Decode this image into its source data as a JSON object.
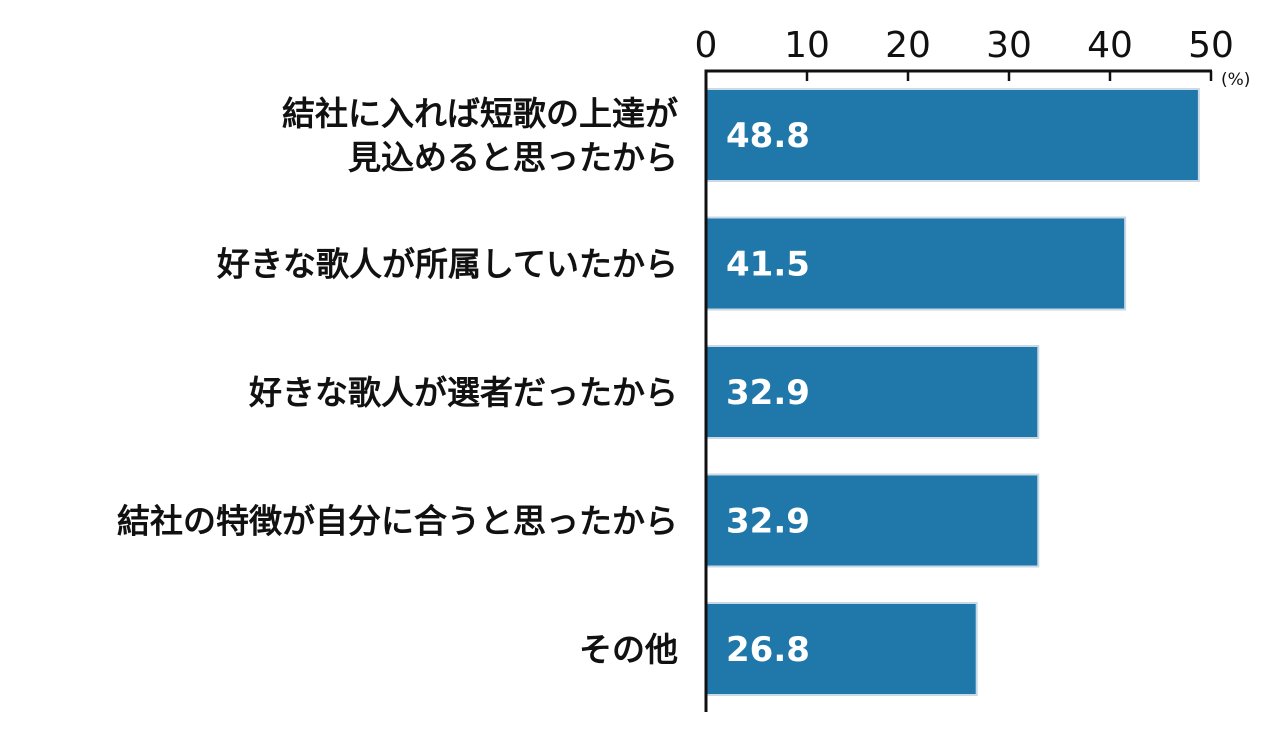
{
  "chart_data": {
    "type": "bar",
    "orientation": "horizontal",
    "categories": [
      [
        "結社に入れば短歌の上達が",
        "見込めると思ったから"
      ],
      [
        "好きな歌人が所属していたから"
      ],
      [
        "好きな歌人が選者だったから"
      ],
      [
        "結社の特徴が自分に合うと思ったから"
      ],
      [
        "その他"
      ]
    ],
    "values": [
      48.8,
      41.5,
      32.9,
      32.9,
      26.8
    ],
    "value_labels": [
      "48.8",
      "41.5",
      "32.9",
      "32.9",
      "26.8"
    ],
    "xlim": [
      0,
      50
    ],
    "xticks": [
      "0",
      "10",
      "20",
      "30",
      "40",
      "50"
    ],
    "x_unit": "(%)",
    "axis_position": "top",
    "grid": false,
    "bar_color": "#1f77aa",
    "text_color": "#111111"
  }
}
